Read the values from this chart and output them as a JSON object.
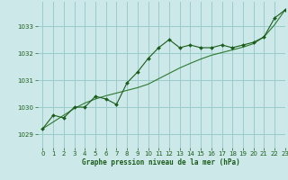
{
  "title": "Graphe pression niveau de la mer (hPa)",
  "background_color": "#cce8e8",
  "grid_color": "#99cccc",
  "line_color_main": "#1a5c1a",
  "line_color_smooth": "#2d7a2d",
  "xlim": [
    -0.5,
    23
  ],
  "ylim": [
    1028.5,
    1033.9
  ],
  "yticks": [
    1029,
    1030,
    1031,
    1032,
    1033
  ],
  "xticks": [
    0,
    1,
    2,
    3,
    4,
    5,
    6,
    7,
    8,
    9,
    10,
    11,
    12,
    13,
    14,
    15,
    16,
    17,
    18,
    19,
    20,
    21,
    22,
    23
  ],
  "pressure_data": [
    1029.2,
    1029.7,
    1029.6,
    1030.0,
    1030.0,
    1030.4,
    1030.3,
    1030.1,
    1030.9,
    1031.3,
    1031.8,
    1032.2,
    1032.5,
    1032.2,
    1032.3,
    1032.2,
    1032.2,
    1032.3,
    1032.2,
    1032.3,
    1032.4,
    1032.6,
    1033.3,
    1033.6
  ],
  "smooth_data": [
    1029.2,
    1029.45,
    1029.7,
    1029.95,
    1030.15,
    1030.3,
    1030.42,
    1030.52,
    1030.62,
    1030.72,
    1030.85,
    1031.05,
    1031.25,
    1031.45,
    1031.62,
    1031.78,
    1031.92,
    1032.02,
    1032.12,
    1032.22,
    1032.35,
    1032.6,
    1033.05,
    1033.6
  ]
}
